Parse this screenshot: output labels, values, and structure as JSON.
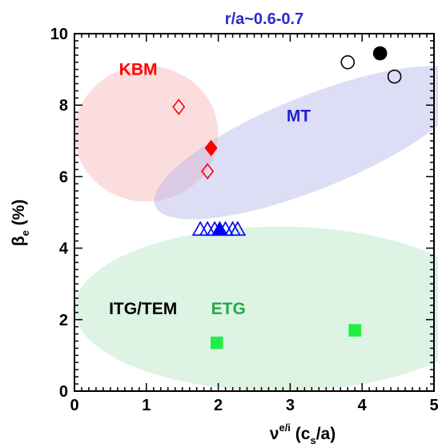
{
  "chart_data": {
    "type": "scatter",
    "title": "r/a~0.6-0.7",
    "xlim": [
      0,
      5
    ],
    "ylim": [
      0,
      10
    ],
    "x_ticks": [
      "0",
      "1",
      "2",
      "3",
      "4",
      "5"
    ],
    "y_ticks": [
      "0",
      "2",
      "4",
      "6",
      "8",
      "10"
    ],
    "xlabel": {
      "base": "ν",
      "sup": "e/i",
      "paren_open": " (c",
      "sub": "s",
      "paren_close": "/a)"
    },
    "ylabel": {
      "base": "β",
      "sub": "e",
      "unit": " (%)"
    },
    "regions": [
      {
        "name": "KBM",
        "label": "KBM",
        "fill": "#f8b4b4",
        "label_color": "#ff0000",
        "cx": 1.0,
        "cy": 7.2,
        "rx": 1.0,
        "ry": 1.9,
        "angle": 0,
        "label_x": 0.62,
        "label_y": 8.85
      },
      {
        "name": "MT",
        "label": "MT",
        "fill": "#b4b4e8",
        "label_color": "#2222cc",
        "cx": 3.3,
        "cy": 6.95,
        "rx": 2.35,
        "ry": 1.3,
        "angle": -22,
        "label_x": 2.95,
        "label_y": 7.55
      },
      {
        "name": "ITG/TEM",
        "label": "ITG/TEM",
        "fill": "#b4e4c4",
        "label_color": "#000000",
        "cx": 2.85,
        "cy": 2.3,
        "rx": 2.85,
        "ry": 2.3,
        "angle": 0,
        "label_x": 0.48,
        "label_y": 2.15
      },
      {
        "name": "ETG",
        "label": "ETG",
        "fill": "none",
        "label_color": "#22aa44",
        "label_x": 1.9,
        "label_y": 2.15
      }
    ],
    "series": [
      {
        "marker": "circle-open",
        "color": "#000000",
        "points": [
          [
            3.8,
            9.2
          ],
          [
            4.45,
            8.8
          ]
        ]
      },
      {
        "marker": "circle-filled",
        "color": "#000000",
        "points": [
          [
            4.25,
            9.45
          ]
        ]
      },
      {
        "marker": "diamond-open",
        "color": "#ff0000",
        "points": [
          [
            1.45,
            7.95
          ],
          [
            1.85,
            6.15
          ]
        ]
      },
      {
        "marker": "diamond-filled",
        "color": "#ff0000",
        "points": [
          [
            1.9,
            6.8
          ]
        ]
      },
      {
        "marker": "triangle-open",
        "color": "#0000ff",
        "points": [
          [
            1.75,
            4.5
          ],
          [
            1.85,
            4.5
          ],
          [
            1.95,
            4.5
          ],
          [
            2.1,
            4.5
          ],
          [
            2.2,
            4.5
          ],
          [
            2.27,
            4.5
          ]
        ]
      },
      {
        "marker": "triangle-filled",
        "color": "#0000ff",
        "points": [
          [
            2.02,
            4.5
          ]
        ]
      },
      {
        "marker": "square-filled",
        "color": "#22ee44",
        "points": [
          [
            1.98,
            1.35
          ],
          [
            3.9,
            1.7
          ]
        ]
      }
    ]
  }
}
